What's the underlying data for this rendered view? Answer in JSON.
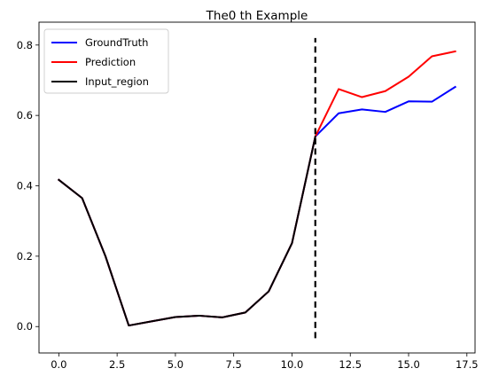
{
  "chart_data": {
    "type": "line",
    "title": "The0 th Example",
    "xlabel": "",
    "ylabel": "",
    "xlim": [
      -0.85,
      17.85
    ],
    "ylim": [
      -0.075,
      0.865
    ],
    "x_ticks": [
      0.0,
      2.5,
      5.0,
      7.5,
      10.0,
      12.5,
      15.0,
      17.5
    ],
    "x_tick_labels": [
      "0.0",
      "2.5",
      "5.0",
      "7.5",
      "10.0",
      "12.5",
      "15.0",
      "17.5"
    ],
    "y_ticks": [
      0.0,
      0.2,
      0.4,
      0.6,
      0.8
    ],
    "y_tick_labels": [
      "0.0",
      "0.2",
      "0.4",
      "0.6",
      "0.8"
    ],
    "grid": false,
    "legend_position": "top-left",
    "series": [
      {
        "name": "GroundTruth",
        "color": "#0000ff",
        "x": [
          0,
          1,
          2,
          3,
          4,
          5,
          6,
          7,
          8,
          9,
          10,
          11,
          12,
          13,
          14,
          15,
          16,
          17
        ],
        "y": [
          0.417,
          0.365,
          0.2,
          0.003,
          0.015,
          0.027,
          0.031,
          0.026,
          0.04,
          0.1,
          0.237,
          0.54,
          0.606,
          0.617,
          0.61,
          0.64,
          0.639,
          0.681
        ]
      },
      {
        "name": "Prediction",
        "color": "#ff0000",
        "x": [
          0,
          1,
          2,
          3,
          4,
          5,
          6,
          7,
          8,
          9,
          10,
          11,
          12,
          13,
          14,
          15,
          16,
          17
        ],
        "y": [
          0.417,
          0.365,
          0.2,
          0.003,
          0.015,
          0.027,
          0.031,
          0.026,
          0.04,
          0.1,
          0.237,
          0.54,
          0.675,
          0.652,
          0.669,
          0.71,
          0.768,
          0.782
        ]
      },
      {
        "name": "Input_region",
        "color": "#000000",
        "x": [
          0,
          1,
          2,
          3,
          4,
          5,
          6,
          7,
          8,
          9,
          10,
          11
        ],
        "y": [
          0.417,
          0.365,
          0.2,
          0.003,
          0.015,
          0.027,
          0.031,
          0.026,
          0.04,
          0.1,
          0.237,
          0.54
        ]
      }
    ],
    "annotations": [
      {
        "type": "vertical-dashed-line",
        "x": 11,
        "y_range": [
          -0.033,
          0.82
        ],
        "color": "#000000"
      }
    ]
  }
}
